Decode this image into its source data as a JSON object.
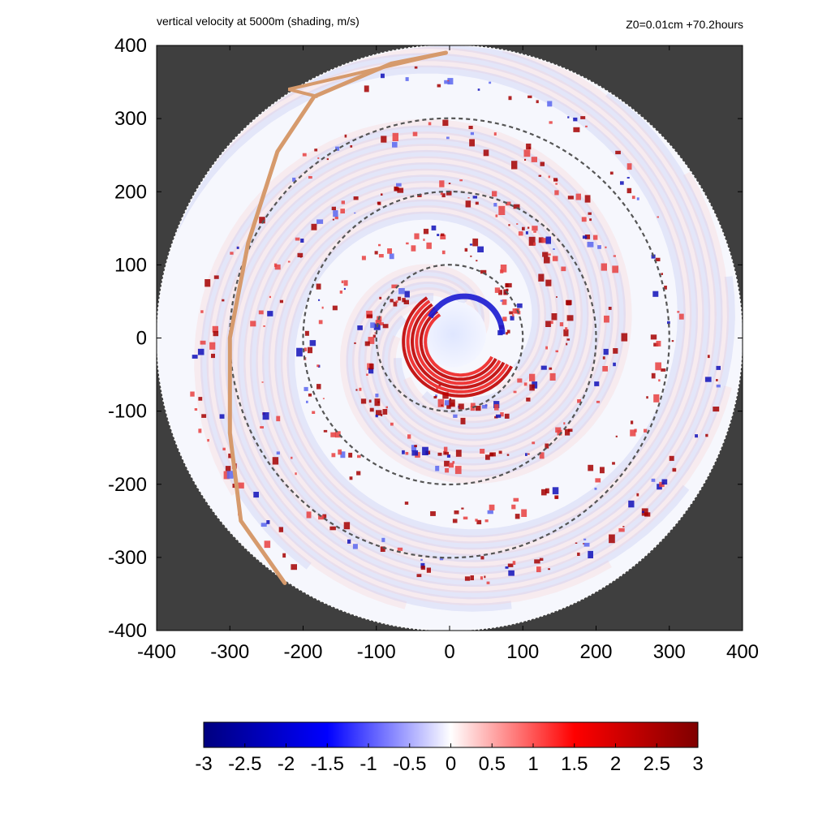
{
  "header": {
    "title": "vertical velocity at 5000m (shading, m/s)",
    "subtitle": "Z0=0.01cm  +70.2hours"
  },
  "chart_data": {
    "type": "heatmap",
    "title": "vertical velocity at 5000m (shading, m/s)",
    "annotation": "Z0=0.01cm  +70.2hours",
    "xlim": [
      -400,
      400
    ],
    "ylim": [
      -400,
      400
    ],
    "x_ticks": [
      "-400",
      "-300",
      "-200",
      "-100",
      "0",
      "100",
      "200",
      "300",
      "400"
    ],
    "y_ticks": [
      "400",
      "300",
      "200",
      "100",
      "0",
      "-100",
      "-200",
      "-300",
      "-400"
    ],
    "domain_radius": 400,
    "range_rings": [
      100,
      200,
      300
    ],
    "colorbar": {
      "min": -3,
      "max": 3,
      "ticks": [
        "-3",
        "-2.5",
        "-2",
        "-1.5",
        "-1",
        "-0.5",
        "0",
        "0.5",
        "1",
        "1.5",
        "2",
        "2.5",
        "3"
      ],
      "colors": [
        "#00007f",
        "#0000ff",
        "#ffffff",
        "#ff0000",
        "#7f0000"
      ]
    },
    "track_line": [
      [
        -5,
        390
      ],
      [
        -80,
        375
      ],
      [
        -185,
        330
      ],
      [
        -235,
        255
      ],
      [
        -275,
        130
      ],
      [
        -300,
        0
      ],
      [
        -300,
        -130
      ],
      [
        -285,
        -250
      ],
      [
        -225,
        -335
      ]
    ],
    "colors": {
      "background": "#3f3f3f",
      "track": "#d69a6c",
      "ring": "#555555"
    }
  }
}
